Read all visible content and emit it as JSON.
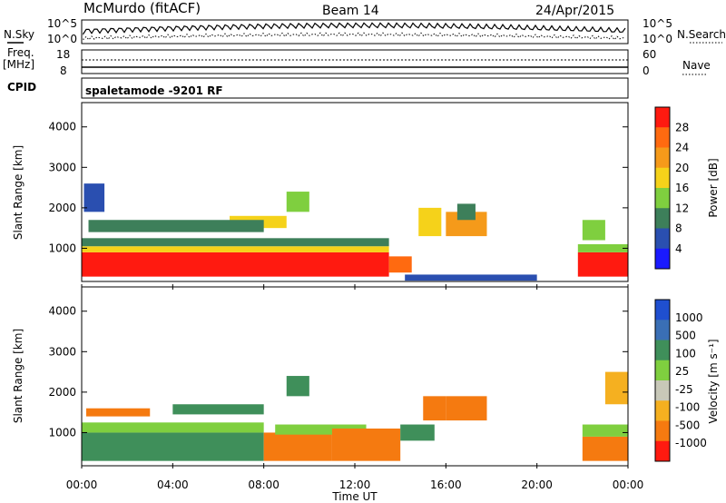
{
  "header": {
    "station": "McMurdo (fitACF)",
    "beam": "Beam 14",
    "date": "24/Apr/2015",
    "cpid_label": "CPID",
    "cpid_value": "spaletamode -9201 RF"
  },
  "noise_panel": {
    "left_label": "N.Sky",
    "right_label": "N.Search",
    "left_ticks": [
      "10^5",
      "10^0"
    ],
    "right_ticks": [
      "10^5",
      "10^0"
    ]
  },
  "freq_panel": {
    "left_label_1": "Freq.",
    "left_label_2": "[MHz]",
    "right_label": "Nave",
    "left_ticks": [
      "18",
      "8"
    ],
    "right_ticks": [
      "60",
      "0"
    ]
  },
  "time_axis": {
    "label": "Time UT",
    "ticks": [
      "00:00",
      "04:00",
      "08:00",
      "12:00",
      "16:00",
      "20:00",
      "00:00"
    ]
  },
  "range_axis": {
    "label": "Slant Range [km]",
    "ticks": [
      "1000",
      "2000",
      "3000",
      "4000"
    ]
  },
  "power_scale": {
    "label": "Power [dB]",
    "ticks": [
      "4",
      "8",
      "12",
      "16",
      "20",
      "24",
      "28"
    ],
    "colors": [
      "#1a1aff",
      "#2a4fb0",
      "#3d7f5a",
      "#7fcf3f",
      "#f5d21a",
      "#f59a1a",
      "#ff6a10",
      "#ff1a10"
    ]
  },
  "velocity_scale": {
    "label": "Velocity [m s⁻¹]",
    "ticks": [
      "1000",
      "500",
      "100",
      "25",
      "-25",
      "-100",
      "-500",
      "-1000"
    ],
    "colors": [
      "#1f4fd0",
      "#3a6fb5",
      "#3f8f5a",
      "#7fcf3f",
      "#c8c8b8",
      "#f5b020",
      "#f57a10",
      "#ff1a10"
    ]
  },
  "chart_data": [
    {
      "type": "heatmap",
      "name": "power",
      "x_unit": "hours UT",
      "y_unit": "km",
      "xlim": [
        0,
        24
      ],
      "ylim": [
        180,
        4600
      ],
      "regions": [
        {
          "x0": 0.0,
          "x1": 13.5,
          "y0": 300,
          "y1": 900,
          "value": 30
        },
        {
          "x0": 0.0,
          "x1": 13.5,
          "y0": 900,
          "y1": 1050,
          "value": 16
        },
        {
          "x0": 0.0,
          "x1": 13.5,
          "y0": 1050,
          "y1": 1250,
          "value": 8
        },
        {
          "x0": 13.5,
          "x1": 14.5,
          "y0": 400,
          "y1": 800,
          "value": 26
        },
        {
          "x0": 14.8,
          "x1": 15.8,
          "y0": 1300,
          "y1": 2000,
          "value": 18
        },
        {
          "x0": 16.0,
          "x1": 17.8,
          "y0": 1300,
          "y1": 1900,
          "value": 20
        },
        {
          "x0": 16.5,
          "x1": 17.3,
          "y0": 1700,
          "y1": 2100,
          "value": 10
        },
        {
          "x0": 21.8,
          "x1": 24.0,
          "y0": 300,
          "y1": 900,
          "value": 30
        },
        {
          "x0": 21.8,
          "x1": 24.0,
          "y0": 900,
          "y1": 1100,
          "value": 12
        },
        {
          "x0": 22.0,
          "x1": 23.0,
          "y0": 1200,
          "y1": 1700,
          "value": 14
        },
        {
          "x0": 6.5,
          "x1": 9.0,
          "y0": 1500,
          "y1": 1800,
          "value": 18
        },
        {
          "x0": 9.0,
          "x1": 10.0,
          "y0": 1900,
          "y1": 2400,
          "value": 14
        },
        {
          "x0": 0.3,
          "x1": 8.0,
          "y0": 1400,
          "y1": 1700,
          "value": 10
        },
        {
          "x0": 14.2,
          "x1": 20.0,
          "y0": 200,
          "y1": 350,
          "value": 6
        },
        {
          "x0": 0.1,
          "x1": 1.0,
          "y0": 1900,
          "y1": 2600,
          "value": 6
        }
      ]
    },
    {
      "type": "heatmap",
      "name": "velocity",
      "x_unit": "hours UT",
      "y_unit": "km",
      "xlim": [
        0,
        24
      ],
      "ylim": [
        180,
        4600
      ],
      "regions": [
        {
          "x0": 0.0,
          "x1": 8.0,
          "y0": 300,
          "y1": 1000,
          "value": 60
        },
        {
          "x0": 0.0,
          "x1": 8.0,
          "y0": 1000,
          "y1": 1250,
          "value": 10
        },
        {
          "x0": 8.0,
          "x1": 11.0,
          "y0": 300,
          "y1": 1000,
          "value": -120
        },
        {
          "x0": 8.5,
          "x1": 12.5,
          "y0": 950,
          "y1": 1200,
          "value": 10
        },
        {
          "x0": 11.0,
          "x1": 14.0,
          "y0": 300,
          "y1": 1100,
          "value": -200
        },
        {
          "x0": 14.0,
          "x1": 15.5,
          "y0": 800,
          "y1": 1200,
          "value": 60
        },
        {
          "x0": 15.0,
          "x1": 16.0,
          "y0": 1300,
          "y1": 1900,
          "value": -300
        },
        {
          "x0": 16.0,
          "x1": 17.8,
          "y0": 1300,
          "y1": 1900,
          "value": -250
        },
        {
          "x0": 22.0,
          "x1": 24.0,
          "y0": 300,
          "y1": 900,
          "value": -150
        },
        {
          "x0": 22.0,
          "x1": 24.0,
          "y0": 900,
          "y1": 1200,
          "value": 15
        },
        {
          "x0": 4.0,
          "x1": 8.0,
          "y0": 1450,
          "y1": 1700,
          "value": 60
        },
        {
          "x0": 9.0,
          "x1": 10.0,
          "y0": 1900,
          "y1": 2400,
          "value": 60
        },
        {
          "x0": 0.2,
          "x1": 3.0,
          "y0": 1400,
          "y1": 1600,
          "value": -100
        },
        {
          "x0": 23.0,
          "x1": 24.0,
          "y0": 1700,
          "y1": 2500,
          "value": -80
        }
      ]
    }
  ]
}
